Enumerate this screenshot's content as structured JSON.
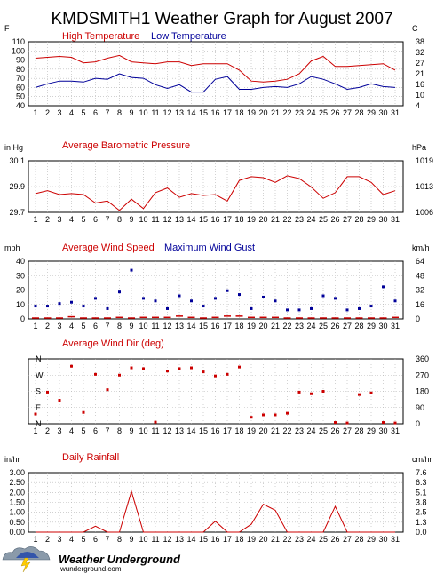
{
  "page": {
    "title": "KMDSMITH1 Weather Graph for August 2007",
    "logo_text": "Weather Underground",
    "logo_url_text": "wunderground.com"
  },
  "colors": {
    "high": "#cc0000",
    "low": "#000099",
    "red": "#cc0000",
    "blue": "#000099",
    "grid": "#b4b4b4"
  },
  "days": [
    "1",
    "2",
    "3",
    "4",
    "5",
    "6",
    "7",
    "8",
    "9",
    "10",
    "11",
    "12",
    "13",
    "14",
    "15",
    "16",
    "17",
    "18",
    "19",
    "20",
    "21",
    "22",
    "23",
    "24",
    "25",
    "26",
    "27",
    "28",
    "29",
    "30",
    "31"
  ],
  "chart_data": [
    {
      "type": "line",
      "title": "",
      "legend_placement": "top",
      "left_unit": "F",
      "right_unit": "C",
      "ylim": [
        40,
        110
      ],
      "y_ticks": [
        "110",
        "100",
        "90",
        "80",
        "70",
        "60",
        "50",
        "40"
      ],
      "right_ticks": [
        "38",
        "32",
        "27",
        "21",
        "16",
        "10",
        "4"
      ],
      "x": [
        1,
        2,
        3,
        4,
        5,
        6,
        7,
        8,
        9,
        10,
        11,
        12,
        13,
        14,
        15,
        16,
        17,
        18,
        19,
        20,
        21,
        22,
        23,
        24,
        25,
        26,
        27,
        28,
        29,
        30,
        31
      ],
      "series": [
        {
          "name": "High Temperature",
          "color": "#cc0000",
          "values": [
            92,
            93,
            94,
            93,
            87,
            88,
            92,
            95,
            88,
            87,
            86,
            88,
            88,
            84,
            86,
            86,
            86,
            79,
            67,
            66,
            67,
            69,
            75,
            89,
            94,
            83,
            83,
            84,
            85,
            86,
            79
          ]
        },
        {
          "name": "Low Temperature",
          "color": "#000099",
          "values": [
            60,
            64,
            67,
            67,
            66,
            70,
            69,
            75,
            71,
            70,
            63,
            59,
            63,
            55,
            55,
            69,
            72,
            58,
            58,
            60,
            61,
            60,
            64,
            72,
            69,
            64,
            58,
            60,
            64,
            61,
            60
          ]
        }
      ]
    },
    {
      "type": "line",
      "title": "Average Barometric Pressure",
      "left_unit": "in Hg",
      "right_unit": "hPa",
      "ylim": [
        29.7,
        30.25
      ],
      "y_ticks": [
        "30.1",
        "29.9",
        "29.7"
      ],
      "right_ticks": [
        "1019",
        "1013",
        "1006"
      ],
      "x": [
        1,
        2,
        3,
        4,
        5,
        6,
        7,
        8,
        9,
        10,
        11,
        12,
        13,
        14,
        15,
        16,
        17,
        18,
        19,
        20,
        21,
        22,
        23,
        24,
        25,
        26,
        27,
        28,
        29,
        30,
        31
      ],
      "series": [
        {
          "name": "Average Barometric Pressure",
          "color": "#cc0000",
          "values": [
            29.9,
            29.93,
            29.89,
            29.9,
            29.89,
            29.8,
            29.82,
            29.72,
            29.84,
            29.74,
            29.91,
            29.96,
            29.86,
            29.9,
            29.88,
            29.89,
            29.82,
            30.04,
            30.08,
            30.07,
            30.02,
            30.09,
            30.06,
            29.97,
            29.85,
            29.91,
            30.08,
            30.08,
            30.02,
            29.89,
            29.93
          ]
        }
      ]
    },
    {
      "type": "scatter",
      "title": "",
      "left_unit": "mph",
      "right_unit": "km/h",
      "ylim": [
        0,
        45
      ],
      "y_ticks": [
        "40",
        "30",
        "20",
        "10",
        "0"
      ],
      "right_ticks": [
        "64",
        "48",
        "32",
        "16",
        "0"
      ],
      "x": [
        1,
        2,
        3,
        4,
        5,
        6,
        7,
        8,
        9,
        10,
        11,
        12,
        13,
        14,
        15,
        16,
        17,
        18,
        19,
        20,
        21,
        22,
        23,
        24,
        25,
        26,
        27,
        28,
        29,
        30,
        31
      ],
      "series": [
        {
          "name": "Average Wind Speed",
          "color": "#cc0000",
          "values": [
            0.5,
            0.5,
            0.5,
            1.5,
            0.5,
            0.5,
            0.5,
            1,
            0.5,
            1,
            1,
            1,
            2,
            1,
            0.5,
            1,
            2,
            2,
            1,
            1,
            1,
            0.5,
            0.5,
            0.5,
            0.5,
            0.5,
            0.5,
            0.5,
            0.5,
            0.5,
            1
          ]
        },
        {
          "name": "Maximum Wind Gust",
          "color": "#000099",
          "values": [
            10,
            10,
            12,
            13,
            10,
            16,
            8,
            21,
            38,
            16,
            14,
            8,
            18,
            14,
            10,
            16,
            22,
            19,
            8,
            17,
            14,
            7,
            7,
            8,
            18,
            16,
            7,
            8,
            10,
            25,
            14
          ]
        }
      ]
    },
    {
      "type": "scatter",
      "title": "Average Wind Dir (deg)",
      "left_ticks": [
        "N",
        "W",
        "S",
        "E",
        "N"
      ],
      "right_ticks": [
        "360",
        "270",
        "180",
        "90",
        "0"
      ],
      "ylim": [
        0,
        400
      ],
      "x": [
        1,
        2,
        3,
        4,
        5,
        6,
        7,
        8,
        9,
        10,
        11,
        12,
        13,
        14,
        15,
        16,
        17,
        18,
        19,
        20,
        21,
        22,
        23,
        24,
        25,
        26,
        27,
        28,
        29,
        30,
        31
      ],
      "series": [
        {
          "name": "Average Wind Dir (deg)",
          "color": "#cc0000",
          "values": [
            60,
            195,
            145,
            355,
            70,
            305,
            210,
            300,
            345,
            340,
            10,
            325,
            340,
            345,
            320,
            295,
            305,
            350,
            40,
            55,
            55,
            65,
            195,
            185,
            200,
            8,
            5,
            180,
            190,
            8,
            5
          ]
        }
      ]
    },
    {
      "type": "line",
      "title": "Daily Rainfall",
      "left_unit": "in/hr",
      "right_unit": "cm/hr",
      "ylim": [
        0,
        3.0
      ],
      "y_ticks": [
        "3.00",
        "2.50",
        "2.00",
        "1.50",
        "1.00",
        "0.50",
        "0.00"
      ],
      "right_ticks": [
        "7.6",
        "6.3",
        "5.1",
        "3.8",
        "2.5",
        "1.3",
        "0.0"
      ],
      "x": [
        1,
        2,
        3,
        4,
        5,
        6,
        7,
        8,
        9,
        10,
        11,
        12,
        13,
        14,
        15,
        16,
        17,
        18,
        19,
        20,
        21,
        22,
        23,
        24,
        25,
        26,
        27,
        28,
        29,
        30,
        31
      ],
      "series": [
        {
          "name": "Daily Rainfall",
          "color": "#cc0000",
          "values": [
            0,
            0,
            0,
            0,
            0,
            0.3,
            0,
            0,
            2.05,
            0,
            0,
            0,
            0,
            0,
            0,
            0.55,
            0,
            0,
            0.4,
            1.4,
            1.1,
            0,
            0,
            0,
            0,
            1.3,
            0,
            0,
            0,
            0,
            0
          ]
        }
      ]
    }
  ]
}
